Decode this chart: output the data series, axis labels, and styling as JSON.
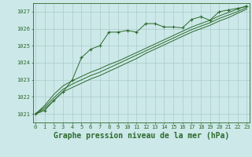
{
  "title": "Graphe pression niveau de la mer (hPa)",
  "background_color": "#cce8e8",
  "grid_color": "#aacccc",
  "line_color": "#2d6a2d",
  "hours": [
    0,
    1,
    2,
    3,
    4,
    5,
    6,
    7,
    8,
    9,
    10,
    11,
    12,
    13,
    14,
    15,
    16,
    17,
    18,
    19,
    20,
    21,
    22,
    23
  ],
  "series_marker": [
    1021.0,
    1021.2,
    1021.8,
    1022.3,
    1023.0,
    1024.3,
    1024.8,
    1025.0,
    1025.8,
    1025.8,
    1025.9,
    1025.8,
    1026.3,
    1026.3,
    1026.1,
    1026.1,
    1026.05,
    1026.55,
    1026.7,
    1026.5,
    1027.0,
    1027.1,
    1027.2,
    1027.3
  ],
  "series_a": [
    1021.0,
    1021.3,
    1021.8,
    1022.3,
    1022.55,
    1022.8,
    1023.05,
    1023.25,
    1023.5,
    1023.75,
    1024.0,
    1024.25,
    1024.55,
    1024.8,
    1025.05,
    1025.3,
    1025.55,
    1025.8,
    1026.0,
    1026.2,
    1026.45,
    1026.65,
    1026.9,
    1027.15
  ],
  "series_b": [
    1021.0,
    1021.4,
    1021.95,
    1022.45,
    1022.75,
    1023.0,
    1023.25,
    1023.45,
    1023.7,
    1023.95,
    1024.2,
    1024.45,
    1024.7,
    1024.95,
    1025.2,
    1025.45,
    1025.7,
    1025.95,
    1026.15,
    1026.35,
    1026.6,
    1026.8,
    1027.0,
    1027.25
  ],
  "series_c": [
    1021.0,
    1021.5,
    1022.15,
    1022.65,
    1022.95,
    1023.2,
    1023.45,
    1023.65,
    1023.9,
    1024.1,
    1024.35,
    1024.6,
    1024.85,
    1025.1,
    1025.35,
    1025.6,
    1025.85,
    1026.1,
    1026.3,
    1026.5,
    1026.75,
    1026.95,
    1027.15,
    1027.35
  ],
  "ylim": [
    1020.5,
    1027.5
  ],
  "yticks": [
    1021,
    1022,
    1023,
    1024,
    1025,
    1026,
    1027
  ],
  "xlim": [
    -0.3,
    23.3
  ],
  "tick_fontsize": 5.0,
  "label_fontsize": 7.0
}
